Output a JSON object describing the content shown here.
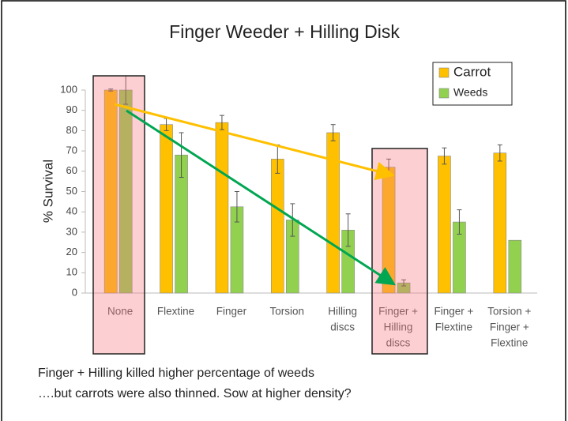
{
  "chart_data": {
    "type": "bar",
    "title": "Finger Weeder + Hilling Disk",
    "y_label": "% Survival",
    "categories": [
      [
        "None"
      ],
      [
        "Flextine"
      ],
      [
        "Finger"
      ],
      [
        "Torsion"
      ],
      [
        "Hilling",
        "discs"
      ],
      [
        "Finger +",
        "Hilling",
        "discs"
      ],
      [
        "Finger +",
        "Flextine"
      ],
      [
        "Torsion +",
        "Finger +",
        "Flextine"
      ]
    ],
    "series": [
      {
        "name": "Carrot",
        "color": "#ffc000",
        "values": [
          100,
          83,
          84,
          66,
          79,
          62,
          67.5,
          69
        ],
        "errors": [
          0.5,
          3,
          3.5,
          7,
          4,
          4,
          4,
          4
        ]
      },
      {
        "name": "Weeds",
        "color": "#92d050",
        "values": [
          100,
          68,
          42.5,
          36,
          31,
          5,
          35,
          26
        ],
        "errors": [
          7,
          11,
          7.5,
          8,
          8,
          1.5,
          6,
          null
        ]
      }
    ],
    "ylim": [
      0,
      100
    ],
    "yticks": [
      0,
      10,
      20,
      30,
      40,
      50,
      60,
      70,
      80,
      90,
      100
    ],
    "grid": false,
    "notes": [
      "Finger + Hilling killed higher percentage of weeds",
      "….but carrots were also thinned.  Sow at higher density?"
    ]
  }
}
